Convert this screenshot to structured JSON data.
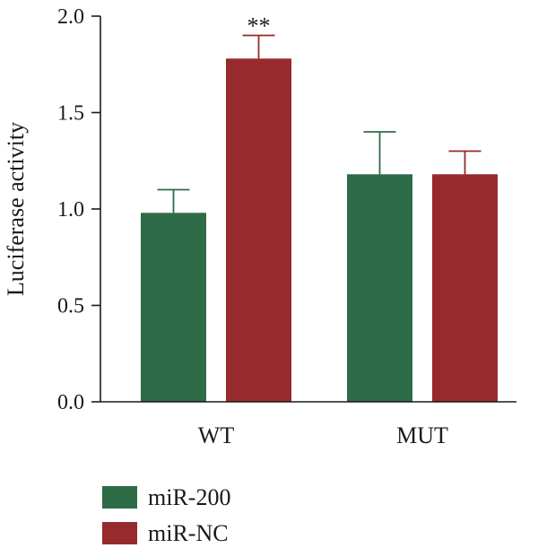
{
  "chart_data": {
    "type": "bar",
    "categories": [
      "WT",
      "MUT"
    ],
    "series": [
      {
        "name": "miR-200",
        "values": [
          0.98,
          1.18
        ],
        "errors": [
          0.12,
          0.22
        ],
        "color": "#2e6b47"
      },
      {
        "name": "miR-NC",
        "values": [
          1.78,
          1.18
        ],
        "errors": [
          0.12,
          0.12
        ],
        "color": "#962a2d"
      }
    ],
    "ylabel": "Luciferase activity",
    "ylim": [
      0,
      2.0
    ],
    "yticks": [
      "0.0",
      "0.5",
      "1.0",
      "1.5",
      "2.0"
    ],
    "annotations": [
      {
        "text": "**",
        "category": "WT",
        "series": "miR-NC"
      }
    ],
    "legend": "bottom-left",
    "grid": false
  }
}
